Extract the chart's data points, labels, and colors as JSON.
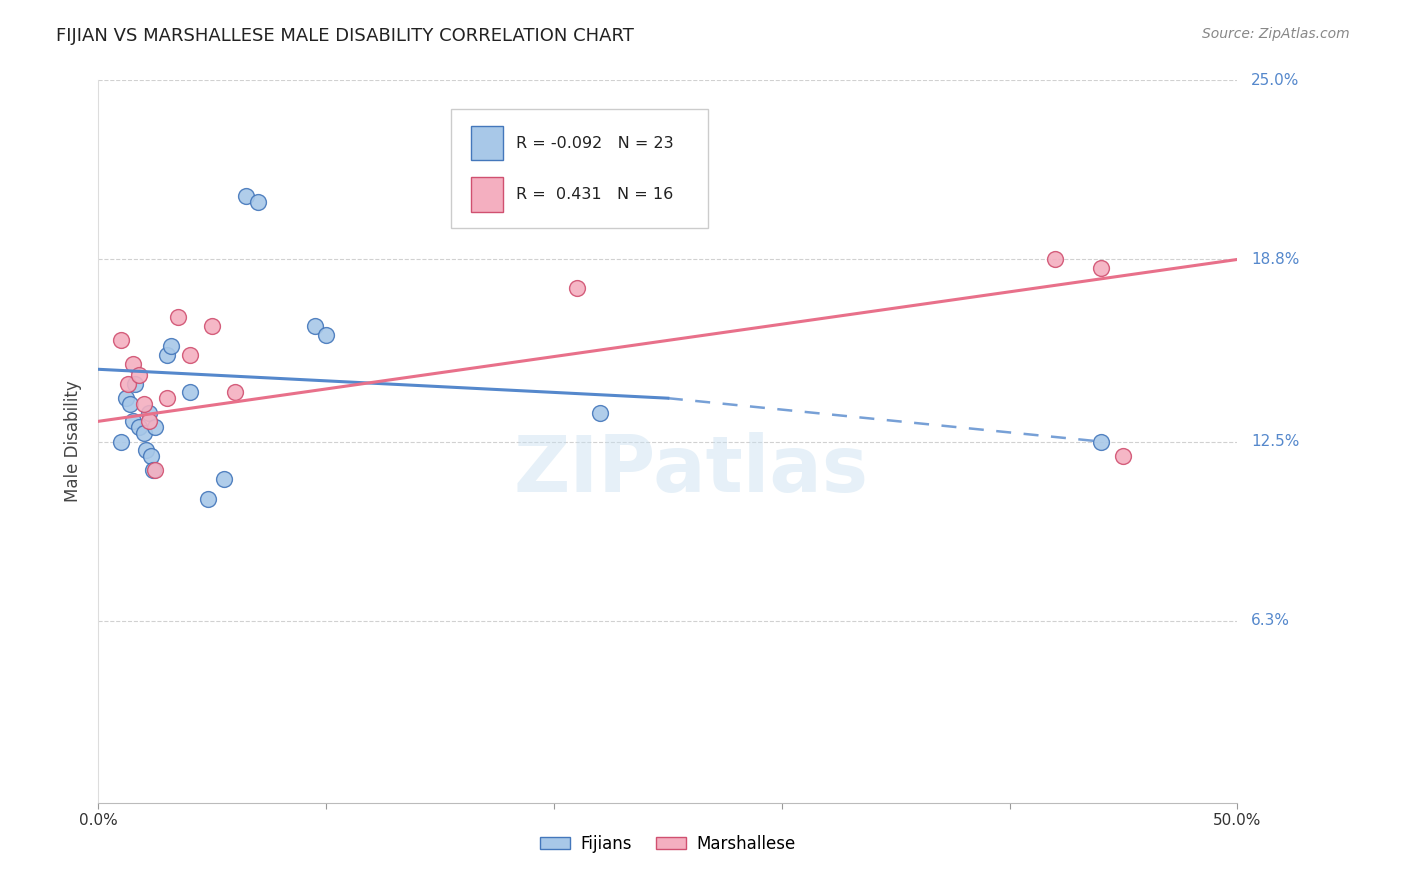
{
  "title": "FIJIAN VS MARSHALLESE MALE DISABILITY CORRELATION CHART",
  "source": "Source: ZipAtlas.com",
  "ylabel": "Male Disability",
  "xlim": [
    0.0,
    50.0
  ],
  "ylim": [
    0.0,
    25.0
  ],
  "yticks": [
    6.3,
    12.5,
    18.8,
    25.0
  ],
  "ytick_labels": [
    "6.3%",
    "12.5%",
    "18.8%",
    "25.0%"
  ],
  "fijian_color": "#a8c8e8",
  "marshallese_color": "#f4afc0",
  "fijian_R": -0.092,
  "fijian_N": 23,
  "marshallese_R": 0.431,
  "marshallese_N": 16,
  "fijian_line_color": "#5588cc",
  "marshallese_line_color": "#e8708a",
  "fijian_edge_color": "#4477bb",
  "marshallese_edge_color": "#d05070",
  "fijian_scatter_x": [
    1.0,
    1.2,
    1.4,
    1.5,
    1.6,
    1.8,
    2.0,
    2.1,
    2.2,
    2.3,
    2.4,
    2.5,
    3.0,
    3.2,
    4.0,
    4.8,
    5.5,
    6.5,
    7.0,
    9.5,
    10.0,
    22.0,
    44.0
  ],
  "fijian_scatter_y": [
    12.5,
    14.0,
    13.8,
    13.2,
    14.5,
    13.0,
    12.8,
    12.2,
    13.5,
    12.0,
    11.5,
    13.0,
    15.5,
    15.8,
    14.2,
    10.5,
    11.2,
    21.0,
    20.8,
    16.5,
    16.2,
    13.5,
    12.5
  ],
  "marshallese_scatter_x": [
    1.0,
    1.3,
    1.5,
    1.8,
    2.0,
    2.2,
    2.5,
    3.0,
    3.5,
    4.0,
    5.0,
    6.0,
    21.0,
    42.0,
    44.0,
    45.0
  ],
  "marshallese_scatter_y": [
    16.0,
    14.5,
    15.2,
    14.8,
    13.8,
    13.2,
    11.5,
    14.0,
    16.8,
    15.5,
    16.5,
    14.2,
    17.8,
    18.8,
    18.5,
    12.0
  ],
  "fijian_line_start_x": 0.0,
  "fijian_line_start_y": 15.0,
  "fijian_line_end_x": 25.0,
  "fijian_line_end_y": 14.0,
  "fijian_dash_end_x": 44.0,
  "fijian_dash_end_y": 12.5,
  "marshallese_line_start_x": 0.0,
  "marshallese_line_start_y": 13.2,
  "marshallese_line_end_x": 50.0,
  "marshallese_line_end_y": 18.8,
  "watermark": "ZIPatlas",
  "legend_fijian_label": "Fijians",
  "legend_marshallese_label": "Marshallese",
  "background_color": "#ffffff",
  "tick_label_color": "#5588cc",
  "grid_color": "#cccccc"
}
